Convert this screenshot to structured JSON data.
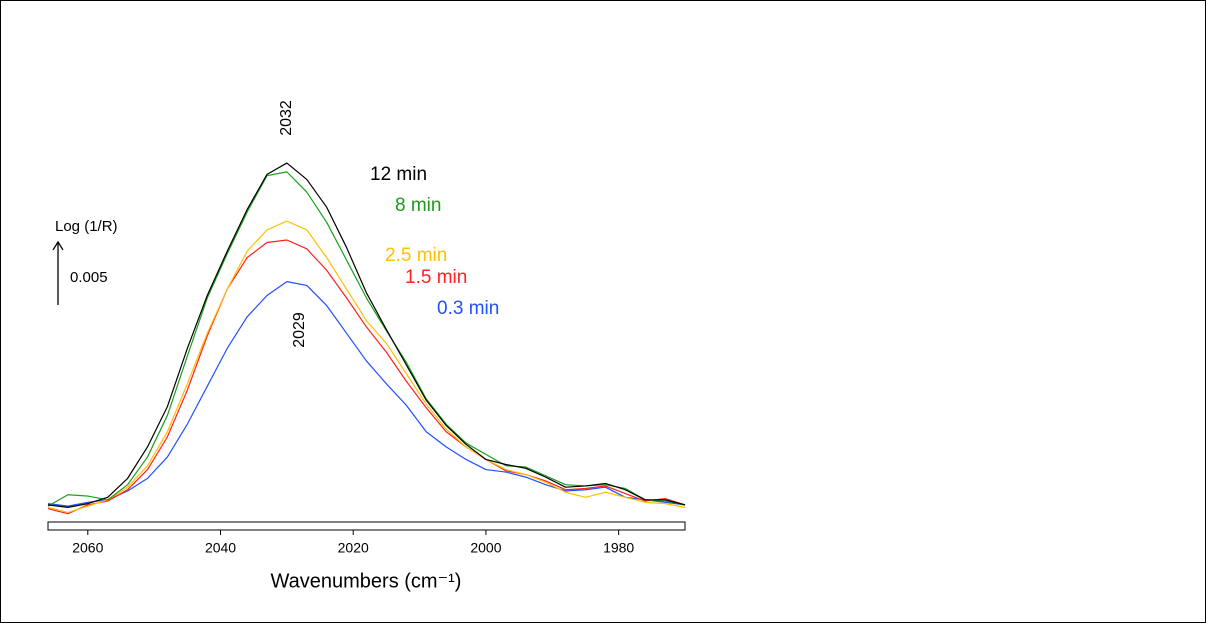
{
  "chart_data": {
    "type": "line",
    "x_label": "Wavenumbers (cm⁻¹)",
    "y_label": "Log (1/R)",
    "scale_bar": 0.005,
    "annotations": [
      "2032",
      "2029"
    ],
    "xlim": [
      2066,
      1970
    ],
    "xticks": [
      2060,
      2040,
      2020,
      2000,
      1980
    ],
    "ylim": [
      -0.0008,
      0.0325
    ],
    "x": [
      2066,
      2063,
      2060,
      2057,
      2054,
      2051,
      2048,
      2045,
      2042,
      2039,
      2036,
      2033,
      2030,
      2027,
      2024,
      2021,
      2018,
      2015,
      2012,
      2009,
      2006,
      2003,
      2000,
      1997,
      1994,
      1991,
      1988,
      1985,
      1982,
      1979,
      1976,
      1973,
      1970
    ],
    "series": [
      {
        "name": "12 min",
        "color": "#000000",
        "values": [
          0.0004,
          0.0002,
          0.0005,
          0.001,
          0.0025,
          0.005,
          0.0082,
          0.0128,
          0.017,
          0.0205,
          0.0238,
          0.0266,
          0.0275,
          0.0262,
          0.024,
          0.0208,
          0.0172,
          0.0143,
          0.0115,
          0.0087,
          0.0067,
          0.0052,
          0.004,
          0.0036,
          0.0033,
          0.0026,
          0.0018,
          0.0019,
          0.0021,
          0.0016,
          0.0008,
          0.0008,
          0.0004
        ]
      },
      {
        "name": "8 min",
        "color": "#1a9e1a",
        "values": [
          0.0003,
          0.0012,
          0.0011,
          0.0008,
          0.002,
          0.0042,
          0.0075,
          0.0122,
          0.0168,
          0.0203,
          0.0236,
          0.0265,
          0.0268,
          0.0252,
          0.0228,
          0.0198,
          0.0168,
          0.0142,
          0.0117,
          0.0088,
          0.0068,
          0.0053,
          0.0044,
          0.0035,
          0.0034,
          0.0027,
          0.002,
          0.0019,
          0.002,
          0.0017,
          0.0008,
          0.0007,
          0.0004
        ]
      },
      {
        "name": "2.5 min",
        "color": "#ffc000",
        "values": [
          0.0002,
          -0.0002,
          0.0003,
          0.0008,
          0.0018,
          0.0035,
          0.0062,
          0.01,
          0.014,
          0.0175,
          0.0205,
          0.0222,
          0.0229,
          0.0222,
          0.02,
          0.0175,
          0.015,
          0.0132,
          0.0108,
          0.0084,
          0.0064,
          0.005,
          0.004,
          0.0032,
          0.0028,
          0.0022,
          0.0014,
          0.001,
          0.0014,
          0.001,
          0.0006,
          0.0005,
          0.0002
        ]
      },
      {
        "name": "1.5 min",
        "color": "#ff2020",
        "values": [
          0.0001,
          -0.0003,
          0.0004,
          0.0007,
          0.0016,
          0.0032,
          0.0058,
          0.0095,
          0.0138,
          0.0175,
          0.02,
          0.0212,
          0.0214,
          0.0207,
          0.019,
          0.0168,
          0.0145,
          0.0125,
          0.0102,
          0.0081,
          0.0062,
          0.005,
          0.004,
          0.0031,
          0.0028,
          0.0023,
          0.0016,
          0.0017,
          0.0019,
          0.0013,
          0.0007,
          0.0009,
          0.0004
        ]
      },
      {
        "name": "0.3 min",
        "color": "#2050ff",
        "values": [
          0.0005,
          0.0003,
          0.0006,
          0.0008,
          0.0015,
          0.0025,
          0.0042,
          0.0068,
          0.0098,
          0.0128,
          0.0153,
          0.017,
          0.0181,
          0.0178,
          0.0162,
          0.014,
          0.0118,
          0.01,
          0.0083,
          0.0062,
          0.005,
          0.004,
          0.0032,
          0.003,
          0.0026,
          0.002,
          0.0015,
          0.0016,
          0.0018,
          0.001,
          0.0008,
          0.0006,
          0.0004
        ]
      }
    ]
  }
}
